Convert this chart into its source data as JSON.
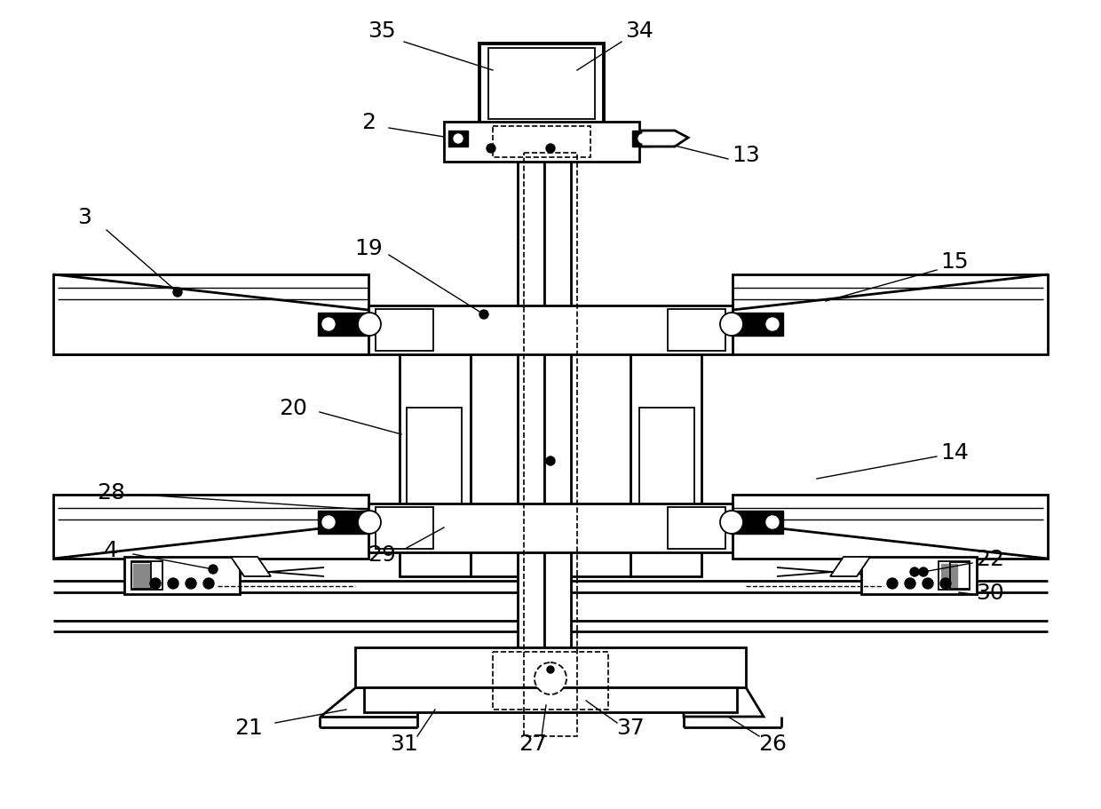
{
  "bg_color": "#ffffff",
  "figsize": [
    12.4,
    9.12
  ],
  "dpi": 100,
  "lw_main": 2.0,
  "lw_thin": 1.3,
  "lw_bold": 2.8,
  "font_size": 18
}
